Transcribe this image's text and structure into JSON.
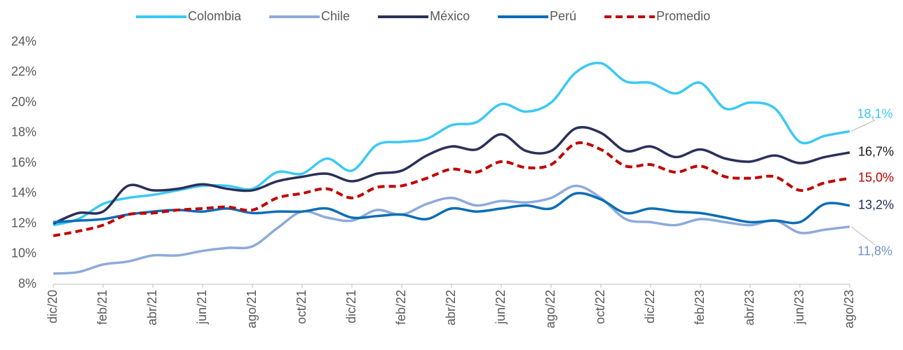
{
  "chart_data": {
    "type": "line",
    "categories": [
      "dic/20",
      null,
      "feb/21",
      null,
      "abr/21",
      null,
      "jun/21",
      null,
      "ago/21",
      null,
      "oct/21",
      null,
      "dic/21",
      null,
      "feb/22",
      null,
      "abr/22",
      null,
      "jun/22",
      null,
      "ago/22",
      null,
      "oct/22",
      null,
      "dic/22",
      null,
      "feb/23",
      null,
      "abr/23",
      null,
      "jun/23",
      null,
      "ago/23"
    ],
    "series": [
      {
        "name": "Colombia",
        "color": "#3cc8f5",
        "dashed": false,
        "values": [
          11.9,
          12.3,
          13.3,
          13.7,
          13.9,
          14.2,
          14.5,
          14.5,
          14.3,
          15.4,
          15.3,
          16.3,
          15.5,
          17.2,
          17.4,
          17.6,
          18.5,
          18.7,
          19.9,
          19.4,
          20.0,
          22.0,
          22.6,
          21.4,
          21.3,
          20.6,
          21.3,
          19.6,
          20.0,
          19.6,
          17.4,
          17.8,
          18.1
        ],
        "value_labels": [
          null,
          null,
          null,
          null,
          null,
          null,
          null,
          null,
          null,
          null,
          null,
          null,
          null,
          null,
          null,
          null,
          null,
          null,
          null,
          null,
          null,
          null,
          null,
          null,
          null,
          null,
          null,
          null,
          null,
          null,
          null,
          null,
          "18,1%"
        ],
        "label_color": "#3cc8f5"
      },
      {
        "name": "Chile",
        "color": "#8eaadb",
        "dashed": false,
        "values": [
          8.7,
          8.8,
          9.3,
          9.5,
          9.9,
          9.9,
          10.2,
          10.4,
          10.5,
          11.7,
          12.8,
          12.4,
          12.2,
          12.9,
          12.6,
          13.3,
          13.7,
          13.2,
          13.5,
          13.4,
          13.7,
          14.5,
          13.7,
          12.3,
          12.1,
          11.9,
          12.3,
          12.1,
          11.9,
          12.2,
          11.4,
          11.6,
          11.8
        ],
        "value_labels": [
          null,
          null,
          null,
          null,
          null,
          null,
          null,
          null,
          null,
          null,
          null,
          null,
          null,
          null,
          null,
          null,
          null,
          null,
          null,
          null,
          null,
          null,
          null,
          null,
          null,
          null,
          null,
          null,
          null,
          null,
          null,
          null,
          "11,8%"
        ],
        "label_color": "#6f8fd0"
      },
      {
        "name": "México",
        "color": "#2a2f5a",
        "dashed": false,
        "values": [
          12.0,
          12.7,
          12.8,
          14.5,
          14.2,
          14.3,
          14.6,
          14.3,
          14.2,
          14.8,
          15.1,
          15.3,
          14.8,
          15.3,
          15.5,
          16.5,
          17.1,
          16.9,
          17.9,
          16.8,
          16.8,
          18.3,
          18.0,
          16.8,
          17.1,
          16.4,
          16.9,
          16.3,
          16.1,
          16.5,
          16.0,
          16.4,
          16.7
        ],
        "value_labels": [
          null,
          null,
          null,
          null,
          null,
          null,
          null,
          null,
          null,
          null,
          null,
          null,
          null,
          null,
          null,
          null,
          null,
          null,
          null,
          null,
          null,
          null,
          null,
          null,
          null,
          null,
          null,
          null,
          null,
          null,
          null,
          null,
          "16,7%"
        ],
        "label_color": "#1a1a1a"
      },
      {
        "name": "Perú",
        "color": "#0b6db5",
        "dashed": false,
        "values": [
          12.1,
          12.2,
          12.3,
          12.6,
          12.8,
          12.9,
          12.8,
          13.0,
          12.7,
          12.8,
          12.8,
          13.0,
          12.4,
          12.5,
          12.6,
          12.3,
          13.0,
          12.8,
          13.0,
          13.2,
          13.0,
          14.0,
          13.6,
          12.7,
          13.0,
          12.8,
          12.7,
          12.4,
          12.1,
          12.2,
          12.1,
          13.3,
          13.2
        ],
        "value_labels": [
          null,
          null,
          null,
          null,
          null,
          null,
          null,
          null,
          null,
          null,
          null,
          null,
          null,
          null,
          null,
          null,
          null,
          null,
          null,
          null,
          null,
          null,
          null,
          null,
          null,
          null,
          null,
          null,
          null,
          null,
          null,
          null,
          "13,2%"
        ],
        "label_color": "#1f2a5a"
      },
      {
        "name": "Promedio",
        "color": "#c00000",
        "dashed": true,
        "values": [
          11.2,
          11.5,
          11.9,
          12.6,
          12.7,
          12.9,
          13.0,
          13.1,
          12.9,
          13.7,
          14.0,
          14.3,
          13.7,
          14.4,
          14.5,
          15.0,
          15.6,
          15.4,
          16.1,
          15.7,
          15.9,
          17.3,
          16.9,
          15.8,
          15.9,
          15.4,
          15.8,
          15.1,
          15.0,
          15.1,
          14.2,
          14.7,
          15.0
        ],
        "value_labels": [
          null,
          null,
          null,
          null,
          null,
          null,
          null,
          null,
          null,
          null,
          null,
          null,
          null,
          null,
          null,
          null,
          null,
          null,
          null,
          null,
          null,
          null,
          null,
          null,
          null,
          null,
          null,
          null,
          null,
          null,
          null,
          null,
          "15,0%"
        ],
        "label_color": "#c00000"
      }
    ],
    "ylim": [
      8,
      24
    ],
    "yticks": [
      {
        "value": 8,
        "label": "8%"
      },
      {
        "value": 10,
        "label": "10%"
      },
      {
        "value": 12,
        "label": "12%"
      },
      {
        "value": 14,
        "label": "14%"
      },
      {
        "value": 16,
        "label": "16%"
      },
      {
        "value": 18,
        "label": "18%"
      },
      {
        "value": 20,
        "label": "20%"
      },
      {
        "value": 22,
        "label": "22%"
      },
      {
        "value": 24,
        "label": "24%"
      }
    ],
    "grid": false,
    "legend": "top"
  }
}
